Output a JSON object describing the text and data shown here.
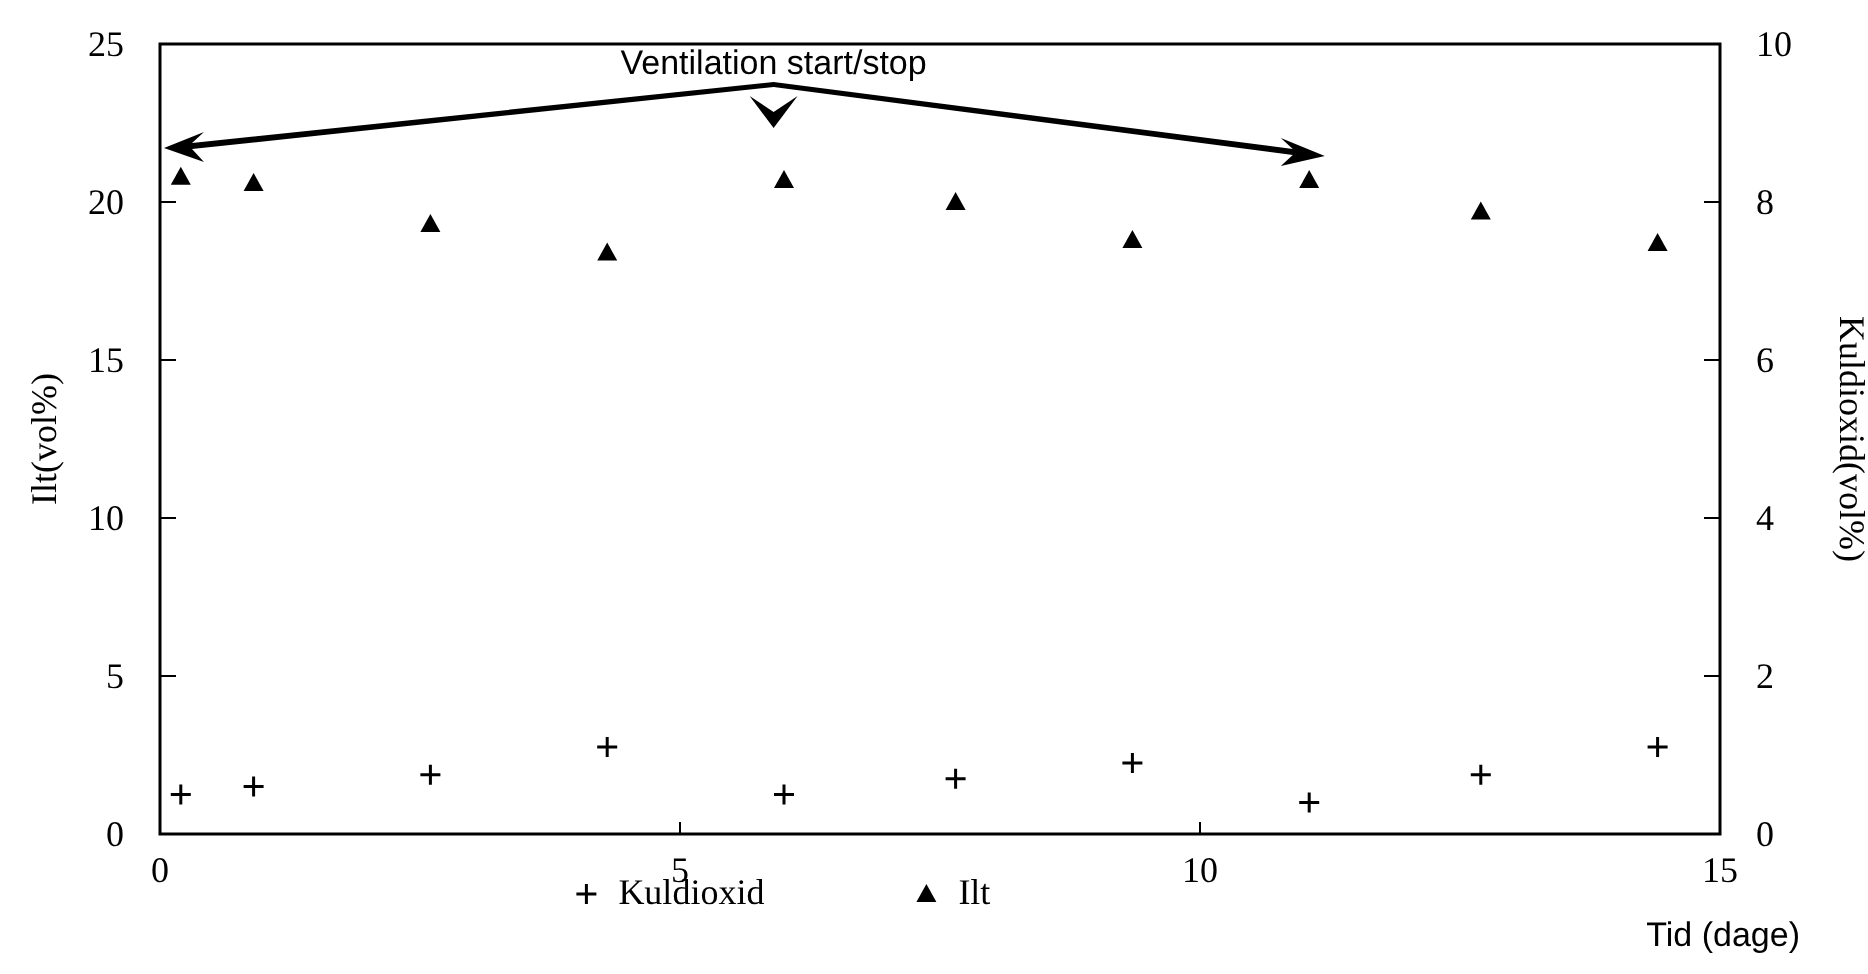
{
  "chart_data": {
    "type": "scatter",
    "xlabel": "Tid (dage)",
    "ylabel": "Ilt(vol%)",
    "y2label": "Kuldioxid(vol%)",
    "annotations": [
      "Ventilation start/stop"
    ],
    "x": [
      0.2,
      0.9,
      2.6,
      4.3,
      6.0,
      7.65,
      9.35,
      11.05,
      12.7,
      14.4
    ],
    "series": [
      {
        "name": "Kuldioxid",
        "color": "#000000",
        "marker": "cross",
        "axis": "y2",
        "values": [
          0.5,
          0.6,
          0.75,
          1.1,
          0.5,
          0.7,
          0.9,
          0.4,
          0.75,
          1.1
        ]
      },
      {
        "name": "Ilt",
        "color": "#000000",
        "marker": "triangle",
        "values": [
          20.8,
          20.6,
          19.3,
          18.4,
          20.7,
          20.0,
          18.8,
          20.7,
          19.7,
          18.7
        ]
      }
    ],
    "xlim": [
      0,
      15
    ],
    "xticks": [
      0,
      5,
      10,
      15
    ],
    "ylim": [
      0,
      25
    ],
    "yticks": [
      0,
      5,
      10,
      15,
      20,
      25
    ],
    "y2lim": [
      0,
      10
    ],
    "y2ticks": [
      0,
      2,
      4,
      6,
      8,
      10
    ],
    "grid": false,
    "legend": "bottom"
  }
}
